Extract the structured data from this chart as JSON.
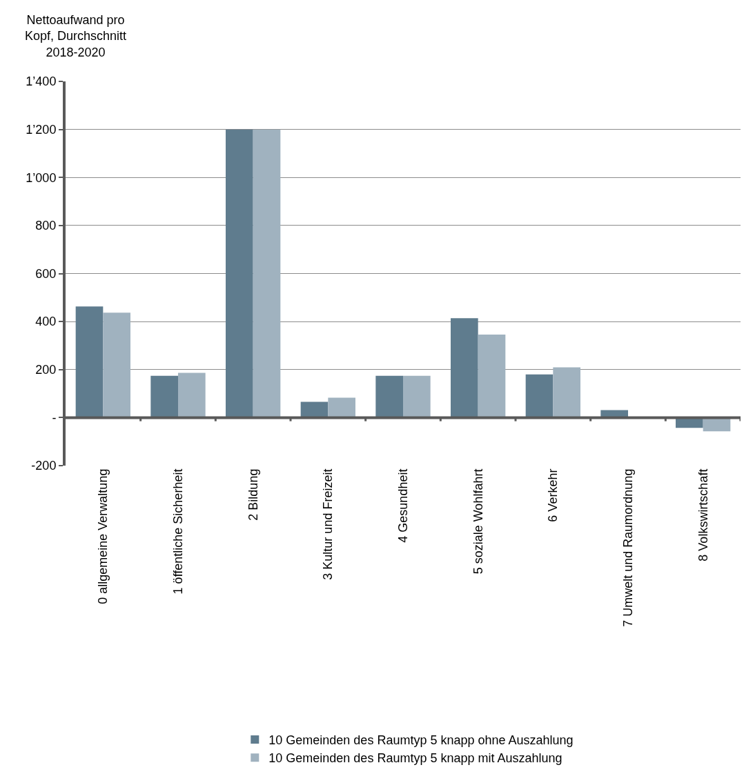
{
  "chart_data": {
    "type": "bar",
    "ylabel": "Nettoaufwand pro\nKopf, Durchschnitt\n2018-2020",
    "categories": [
      "0 allgemeine Verwaltung",
      "1 öffentliche Sicherheit",
      "2 Bildung",
      "3 Kultur und Freizeit",
      "4 Gesundheit",
      "5 soziale Wohlfahrt",
      "6 Verkehr",
      "7 Umwelt und Raumordnung",
      "8 Volkswirtschaft"
    ],
    "series": [
      {
        "name": "10 Gemeinden des Raumtyp 5 knapp ohne Auszahlung",
        "color": "#5f7c8e",
        "values": [
          463,
          174,
          1200,
          66,
          174,
          414,
          180,
          31,
          -43
        ]
      },
      {
        "name": "10 Gemeinden des Raumtyp 5 knapp mit Auszahlung",
        "color": "#a0b2bf",
        "values": [
          437,
          186,
          1200,
          83,
          174,
          346,
          209,
          0,
          -57
        ]
      }
    ],
    "ylim": [
      -200,
      1400
    ],
    "yticks": [
      {
        "value": -200,
        "label": "-200"
      },
      {
        "value": 0,
        "label": "-"
      },
      200,
      400,
      600,
      800,
      {
        "value": 1000,
        "label": "1’000"
      },
      {
        "value": 1200,
        "label": "1’200"
      },
      {
        "value": 1400,
        "label": "1’400"
      }
    ],
    "grid": "y",
    "legend": "bottom"
  }
}
